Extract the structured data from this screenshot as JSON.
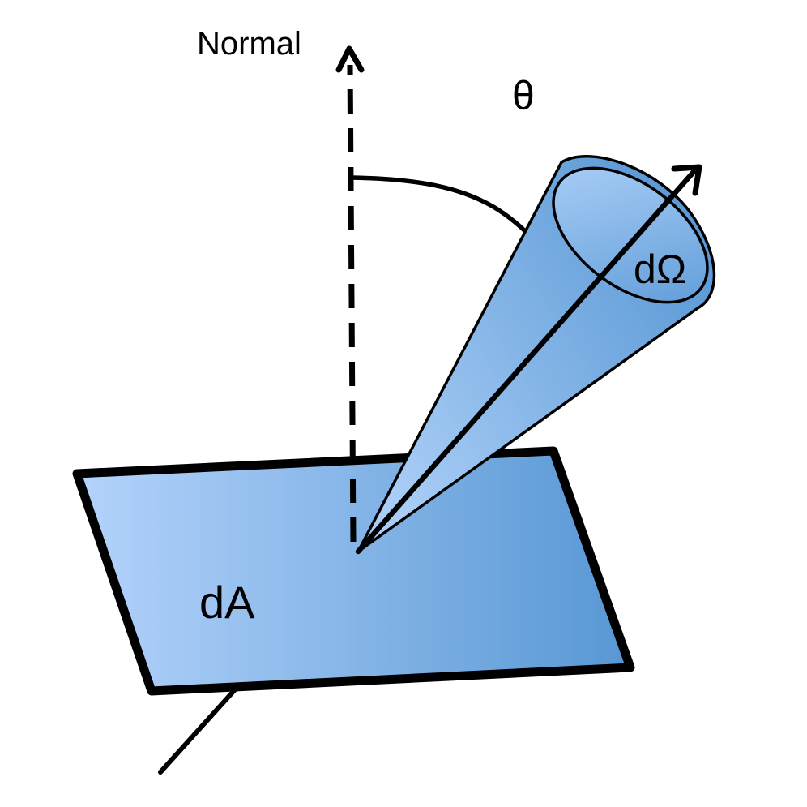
{
  "diagram": {
    "labels": {
      "normal": "Normal",
      "theta": "θ",
      "solid_angle": "dΩ",
      "area": "dA"
    },
    "colors": {
      "surface_light": "#b4d3fb",
      "surface_dark": "#5797d4",
      "cone_light": "#a9cdf6",
      "cone_dark": "#5c9ad6",
      "stroke": "#000000"
    }
  }
}
